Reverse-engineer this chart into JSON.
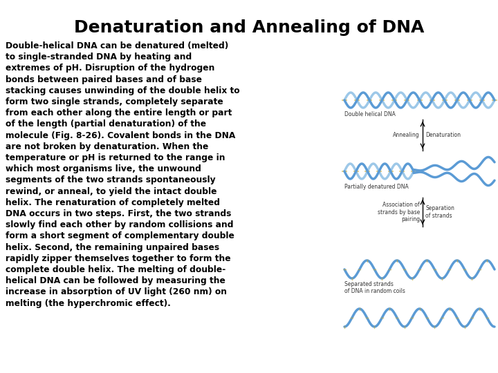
{
  "title": "Denaturation and Annealing of DNA",
  "title_fontsize": 18,
  "body_text": "Double-helical DNA can be denatured (melted)\nto single-stranded DNA by heating and\nextremes of pH. Disruption of the hydrogen\nbonds between paired bases and of base\nstacking causes unwinding of the double helix to\nform two single strands, completely separate\nfrom each other along the entire length or part\nof the length (partial denaturation) of the\nmolecule (Fig. 8-26). Covalent bonds in the DNA\nare not broken by denaturation. When the\ntemperature or pH is returned to the range in\nwhich most organisms live, the unwound\nsegments of the two strands spontaneously\nrewind, or anneal, to yield the intact double\nhelix. The renaturation of completely melted\nDNA occurs in two steps. First, the two strands\nslowly find each other by random collisions and\nform a short segment of complementary double\nhelix. Second, the remaining unpaired bases\nrapidly zipper themselves together to form the\ncomplete double helix. The melting of double-\nhelical DNA can be followed by measuring the\nincrease in absorption of UV light (260 nm) on\nmelting (the hyperchromic effect).",
  "body_fontsize": 8.8,
  "background_color": "#ffffff",
  "text_color": "#000000",
  "diagram_color1": "#6aaed6",
  "diagram_color2": "#aaccee",
  "diagram_color_gold": "#c8a832",
  "label_fontsize": 5.5,
  "labels": {
    "double_helical": "Double helical DNA",
    "annealing": "Annealing",
    "denaturation": "Denaturation",
    "partially": "Partially denatured DNA",
    "association": "Association of\nstrands by base\npairing",
    "separation": "Separation\nof strands",
    "separated": "Separated strands\nof DNA in random coils"
  }
}
